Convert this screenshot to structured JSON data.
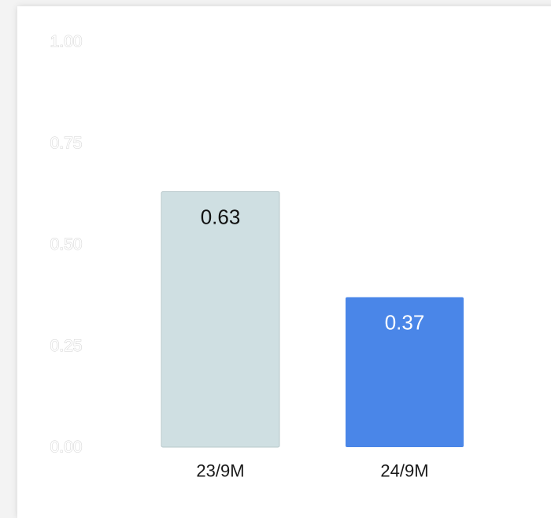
{
  "chart_data": {
    "type": "bar",
    "categories": [
      "23/9M",
      "24/9M"
    ],
    "values": [
      0.63,
      0.37
    ],
    "data_labels": [
      "0.63",
      "0.37"
    ],
    "title": "",
    "xlabel": "",
    "ylabel": "",
    "ylim": [
      0,
      1
    ],
    "yticks": [
      0,
      0.25,
      0.5,
      0.75,
      1.0
    ],
    "ytick_labels": [
      "0.00",
      "0.25",
      "0.50",
      "0.75",
      "1.00"
    ],
    "grid": false,
    "legend": "none",
    "bar_colors": [
      "#cfdfe2",
      "#4a86e8"
    ],
    "label_colors": [
      "#111111",
      "#ffffff"
    ]
  }
}
